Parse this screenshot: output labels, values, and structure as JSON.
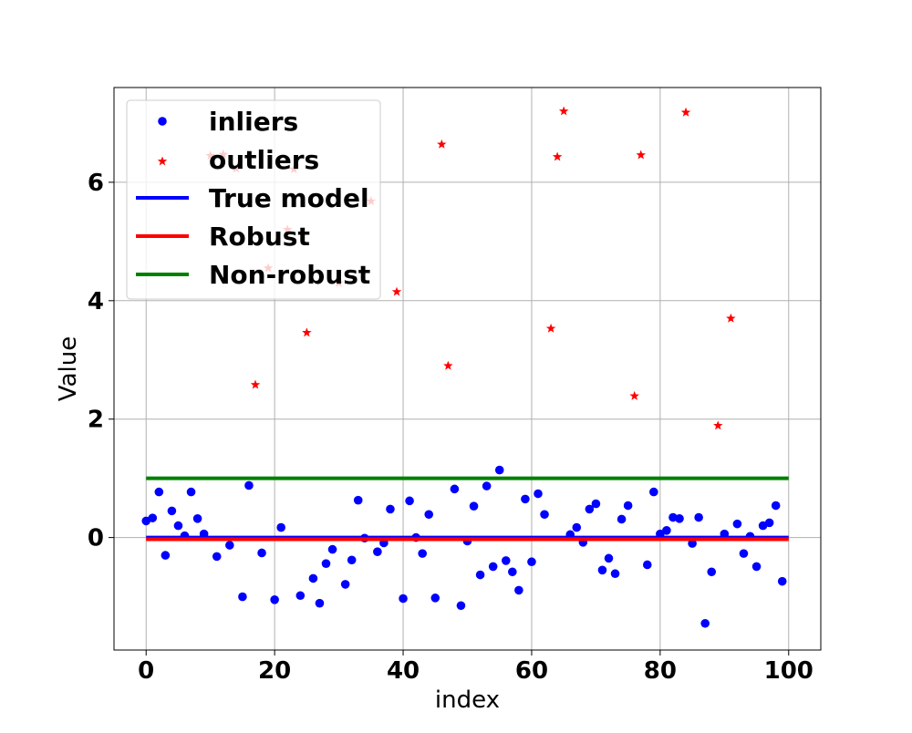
{
  "chart_data": {
    "type": "scatter",
    "title": "",
    "xlabel": "index",
    "ylabel": "Value",
    "xlim": [
      -5,
      105
    ],
    "ylim": [
      -1.9,
      7.6
    ],
    "x_ticks": [
      0,
      20,
      40,
      60,
      80,
      100
    ],
    "y_ticks": [
      0,
      2,
      4,
      6
    ],
    "grid": true,
    "legend_position": "upper-left",
    "series": [
      {
        "name": "inliers",
        "kind": "scatter",
        "marker": "circle",
        "color": "#0000ff",
        "points": [
          [
            0,
            0.28
          ],
          [
            1,
            0.33
          ],
          [
            2,
            0.77
          ],
          [
            3,
            -0.3
          ],
          [
            4,
            0.45
          ],
          [
            5,
            0.2
          ],
          [
            6,
            0.03
          ],
          [
            7,
            0.77
          ],
          [
            8,
            0.32
          ],
          [
            9,
            0.06
          ],
          [
            11,
            -0.32
          ],
          [
            13,
            -0.13
          ],
          [
            15,
            -1.0
          ],
          [
            16,
            0.88
          ],
          [
            18,
            -0.26
          ],
          [
            20,
            -1.05
          ],
          [
            21,
            0.17
          ],
          [
            24,
            -0.98
          ],
          [
            26,
            -0.69
          ],
          [
            27,
            -1.11
          ],
          [
            28,
            -0.44
          ],
          [
            29,
            -0.2
          ],
          [
            31,
            -0.79
          ],
          [
            32,
            -0.38
          ],
          [
            33,
            0.63
          ],
          [
            34,
            -0.01
          ],
          [
            36,
            -0.24
          ],
          [
            37,
            -0.09
          ],
          [
            38,
            0.48
          ],
          [
            40,
            -1.03
          ],
          [
            41,
            0.62
          ],
          [
            42,
            0.0
          ],
          [
            43,
            -0.27
          ],
          [
            44,
            0.39
          ],
          [
            45,
            -1.02
          ],
          [
            48,
            0.82
          ],
          [
            49,
            -1.15
          ],
          [
            50,
            -0.06
          ],
          [
            51,
            0.53
          ],
          [
            52,
            -0.63
          ],
          [
            53,
            0.87
          ],
          [
            54,
            -0.49
          ],
          [
            55,
            1.14
          ],
          [
            56,
            -0.39
          ],
          [
            57,
            -0.58
          ],
          [
            58,
            -0.89
          ],
          [
            59,
            0.65
          ],
          [
            60,
            -0.41
          ],
          [
            61,
            0.74
          ],
          [
            62,
            0.39
          ],
          [
            66,
            0.05
          ],
          [
            67,
            0.17
          ],
          [
            68,
            -0.08
          ],
          [
            69,
            0.48
          ],
          [
            70,
            0.57
          ],
          [
            71,
            -0.55
          ],
          [
            72,
            -0.35
          ],
          [
            73,
            -0.61
          ],
          [
            74,
            0.31
          ],
          [
            75,
            0.54
          ],
          [
            78,
            -0.46
          ],
          [
            79,
            0.77
          ],
          [
            80,
            0.06
          ],
          [
            81,
            0.12
          ],
          [
            82,
            0.34
          ],
          [
            83,
            0.32
          ],
          [
            85,
            -0.1
          ],
          [
            86,
            0.34
          ],
          [
            87,
            -1.45
          ],
          [
            88,
            -0.58
          ],
          [
            90,
            0.06
          ],
          [
            92,
            0.23
          ],
          [
            93,
            -0.27
          ],
          [
            94,
            0.02
          ],
          [
            95,
            -0.49
          ],
          [
            96,
            0.2
          ],
          [
            97,
            0.25
          ],
          [
            98,
            0.54
          ],
          [
            99,
            -0.74
          ]
        ]
      },
      {
        "name": "outliers",
        "kind": "scatter",
        "marker": "star",
        "color": "#ff0000",
        "points": [
          [
            10,
            6.45
          ],
          [
            12,
            6.47
          ],
          [
            14,
            6.23
          ],
          [
            17,
            2.58
          ],
          [
            19,
            4.55
          ],
          [
            22,
            5.2
          ],
          [
            23,
            6.22
          ],
          [
            25,
            3.46
          ],
          [
            30,
            4.3
          ],
          [
            35,
            5.68
          ],
          [
            39,
            4.15
          ],
          [
            46,
            6.64
          ],
          [
            47,
            2.9
          ],
          [
            63,
            3.53
          ],
          [
            64,
            6.43
          ],
          [
            65,
            7.2
          ],
          [
            76,
            2.39
          ],
          [
            77,
            6.46
          ],
          [
            84,
            7.18
          ],
          [
            89,
            1.89
          ],
          [
            91,
            3.7
          ]
        ]
      },
      {
        "name": "True model",
        "kind": "line",
        "color": "#0000ff",
        "x": [
          0,
          100
        ],
        "y": [
          0.0,
          0.0
        ]
      },
      {
        "name": "Robust",
        "kind": "line",
        "color": "#ff0000",
        "x": [
          0,
          100
        ],
        "y": [
          -0.03,
          -0.03
        ]
      },
      {
        "name": "Non-robust",
        "kind": "line",
        "color": "#008000",
        "x": [
          0,
          100
        ],
        "y": [
          1.0,
          1.0
        ]
      }
    ]
  }
}
